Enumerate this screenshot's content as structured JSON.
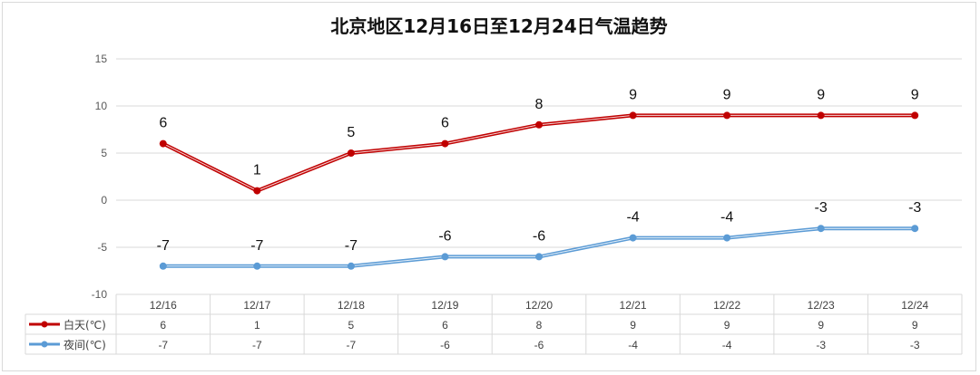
{
  "chart_data": {
    "type": "line",
    "title": "北京地区12月16日至12月24日气温趋势",
    "categories": [
      "12/16",
      "12/17",
      "12/18",
      "12/19",
      "12/20",
      "12/21",
      "12/22",
      "12/23",
      "12/24"
    ],
    "series": [
      {
        "name": "白天(℃)",
        "color": "#c00000",
        "values": [
          6,
          1,
          5,
          6,
          8,
          9,
          9,
          9,
          9
        ]
      },
      {
        "name": "夜间(℃)",
        "color": "#5b9bd5",
        "values": [
          -7,
          -7,
          -7,
          -6,
          -6,
          -4,
          -4,
          -3,
          -3
        ]
      }
    ],
    "ylim": [
      -10,
      15
    ],
    "yticks": [
      15,
      10,
      5,
      0,
      -5,
      -10
    ],
    "grid": true,
    "legend": "data-table-bottom",
    "data_labels": true
  }
}
